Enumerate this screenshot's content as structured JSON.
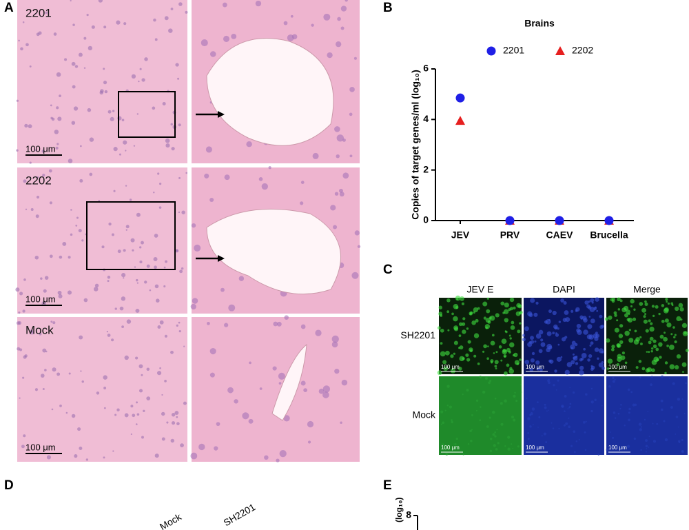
{
  "panel_labels": [
    "A",
    "B",
    "C",
    "D",
    "E"
  ],
  "panel_a": {
    "rows": [
      {
        "label": "2201",
        "scale": "100 μm"
      },
      {
        "label": "2202",
        "scale": "100 μm"
      },
      {
        "label": "Mock",
        "scale": "100 μm"
      }
    ]
  },
  "chart_data": {
    "type": "scatter",
    "title": "Brains",
    "y_label": "Copies of target genes/ml (log₁₀)",
    "categories": [
      "JEV",
      "PRV",
      "CAEV",
      "Brucella"
    ],
    "series": [
      {
        "name": "2201",
        "color": "#1f1fe6",
        "marker": "circle",
        "values": [
          4.85,
          0,
          0,
          0
        ]
      },
      {
        "name": "2202",
        "color": "#e61f1f",
        "marker": "triangle",
        "values": [
          3.95,
          0,
          0,
          0
        ]
      }
    ],
    "ylim": [
      0,
      6
    ],
    "yticks": [
      0,
      2,
      4,
      6
    ]
  },
  "panel_c": {
    "columns": [
      "JEV E",
      "DAPI",
      "Merge"
    ],
    "rows": [
      "SH2201",
      "Mock"
    ],
    "scale": "100 μm"
  },
  "panel_d": {
    "labels": [
      "Mock",
      "SH2201"
    ]
  },
  "panel_e": {
    "y_label": "(log₁₀)",
    "yticks": [
      8
    ]
  }
}
